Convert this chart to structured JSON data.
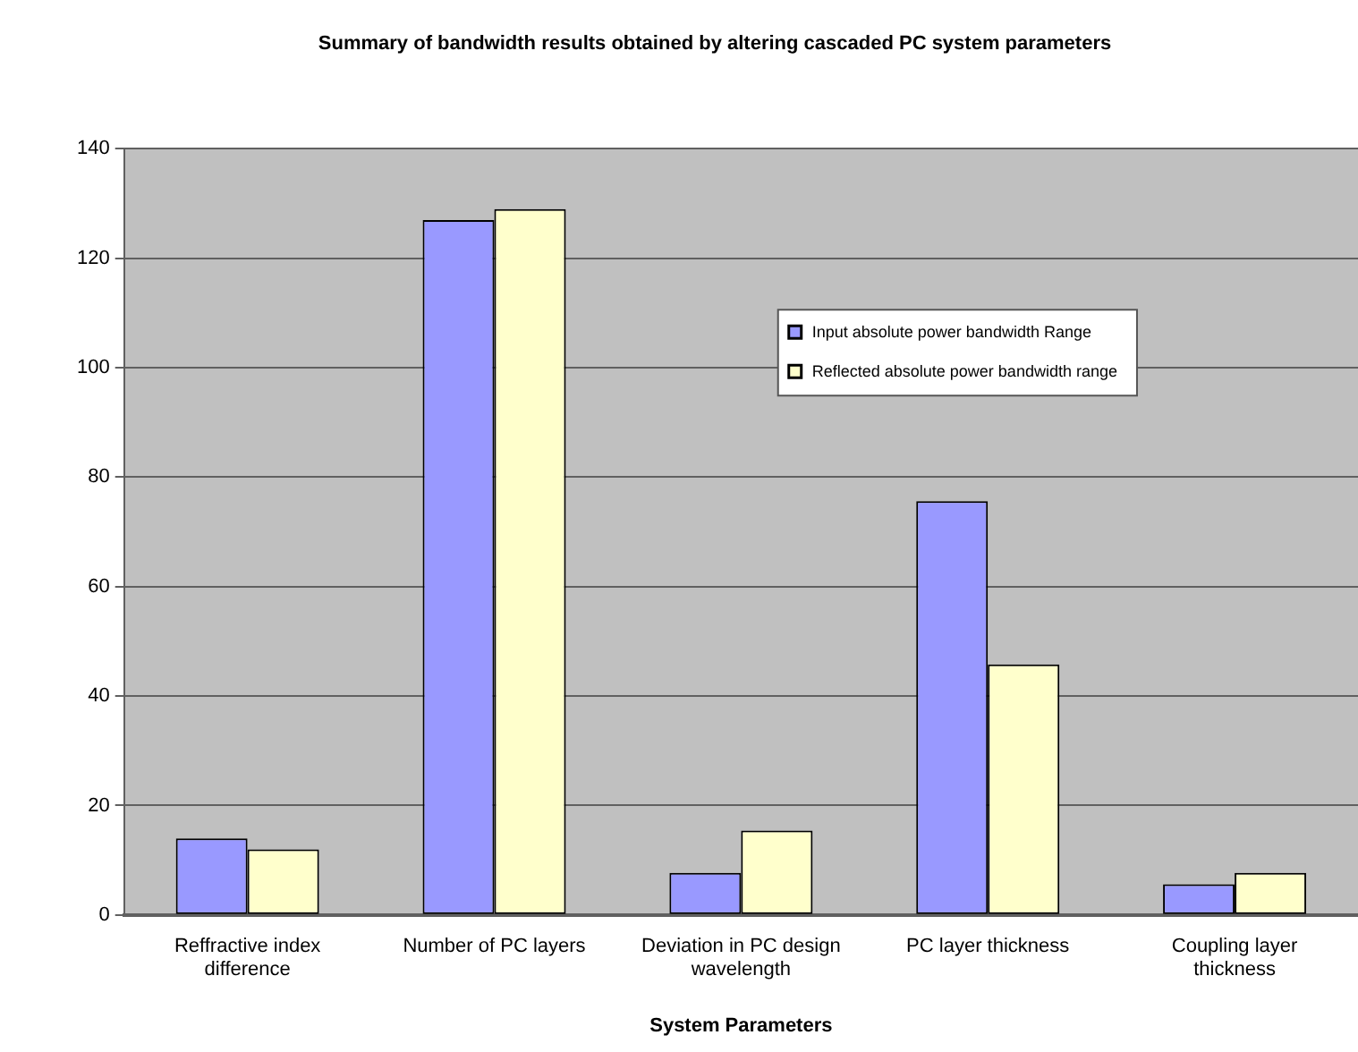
{
  "chart_data": {
    "type": "bar",
    "title": "Summary of bandwidth results obtained by altering cascaded PC system parameters",
    "xlabel": "System Parameters",
    "categories": [
      "Reffractive index difference",
      "Number of PC layers",
      "Deviation in PC design wavelength",
      "PC layer thickness",
      "Coupling layer thickness"
    ],
    "series": [
      {
        "name": "Input absolute power bandwidth Range",
        "color": "#9999ff",
        "values": [
          14,
          127,
          7.7,
          75.6,
          5.6
        ]
      },
      {
        "name": "Reflected absolute power bandwidth range",
        "color": "#ffffcc",
        "values": [
          12,
          129,
          15.4,
          45.8,
          7.7
        ]
      }
    ],
    "ylim": [
      0,
      140
    ],
    "yticks": [
      0,
      20,
      40,
      60,
      80,
      100,
      120,
      140
    ],
    "grid": "y",
    "legend": "top right"
  }
}
